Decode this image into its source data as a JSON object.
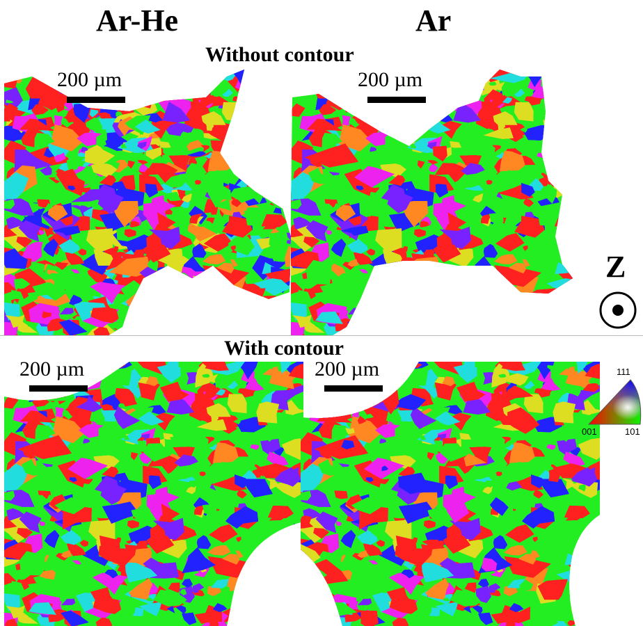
{
  "columns": {
    "left_title": "Ar-He",
    "right_title": "Ar"
  },
  "sections": {
    "top_title": "Without contour",
    "bottom_title": "With contour"
  },
  "scale_bar": {
    "label": "200 µm"
  },
  "axis": {
    "label": "Z",
    "symbol": "out-of-plane-dot-in-circle"
  },
  "ipf_key": {
    "corner_001": "001",
    "corner_101": "101",
    "corner_111": "111"
  },
  "colors": {
    "red": "#ff2020",
    "green": "#22ee22",
    "blue": "#2222ff",
    "magenta": "#ee22ee",
    "cyan": "#22dddd",
    "yellow": "#dddd22",
    "orange": "#ff8822",
    "purple": "#7722ff"
  }
}
